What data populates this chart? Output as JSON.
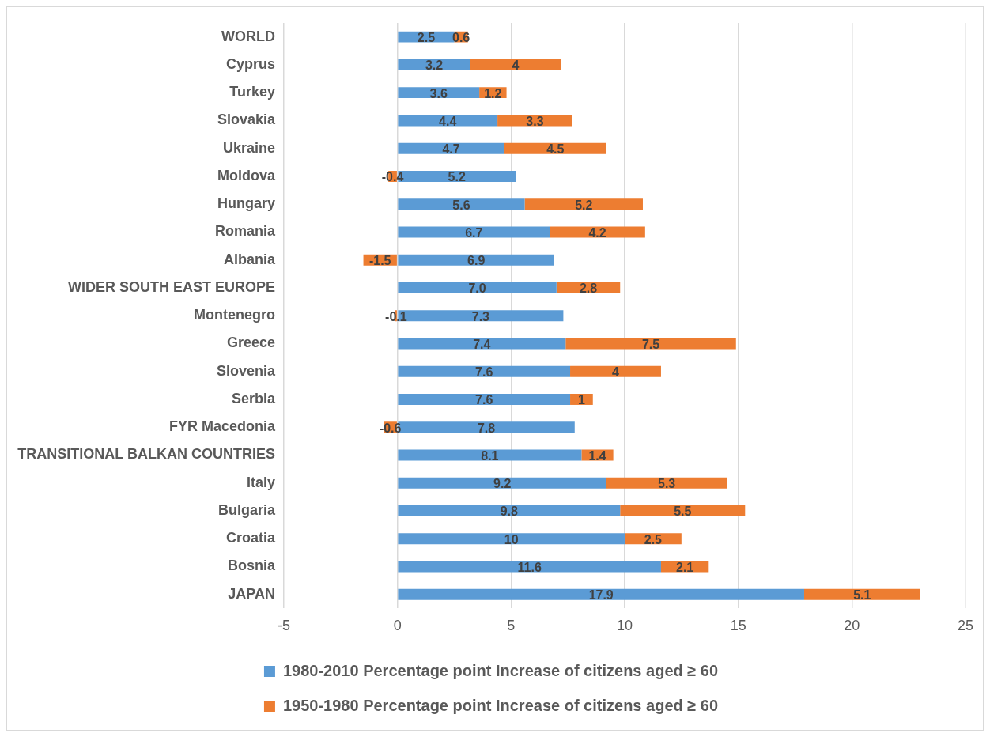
{
  "chart_data": {
    "type": "bar",
    "orientation": "horizontal",
    "stacked": true,
    "categories": [
      "WORLD",
      "Cyprus",
      "Turkey",
      "Slovakia",
      "Ukraine",
      "Moldova",
      "Hungary",
      "Romania",
      "Albania",
      "WIDER SOUTH EAST EUROPE",
      "Montenegro",
      "Greece",
      "Slovenia",
      "Serbia",
      "FYR Macedonia",
      "TRANSITIONAL BALKAN COUNTRIES",
      "Italy",
      "Bulgaria",
      "Croatia",
      "Bosnia",
      "JAPAN"
    ],
    "series": [
      {
        "name": "1980-2010 Percentage point Increase of citizens aged ≥ 60",
        "color": "#5b9bd5",
        "values": [
          2.5,
          3.2,
          3.6,
          4.4,
          4.7,
          5.2,
          5.6,
          6.7,
          6.9,
          7.0,
          7.3,
          7.4,
          7.6,
          7.6,
          7.8,
          8.1,
          9.2,
          9.8,
          10,
          11.6,
          17.9
        ],
        "value_labels": [
          "2.5",
          "3.2",
          "3.6",
          "4.4",
          "4.7",
          "5.2",
          "5.6",
          "6.7",
          "6.9",
          "7.0",
          "7.3",
          "7.4",
          "7.6",
          "7.6",
          "7.8",
          "8.1",
          "9.2",
          "9.8",
          "10",
          "11.6",
          "17.9"
        ]
      },
      {
        "name": "1950-1980 Percentage point Increase of citizens aged ≥ 60",
        "color": "#ed7d31",
        "values": [
          0.6,
          4,
          1.2,
          3.3,
          4.5,
          -0.4,
          5.2,
          4.2,
          -1.5,
          2.8,
          -0.1,
          7.5,
          4,
          1,
          -0.6,
          1.4,
          5.3,
          5.5,
          2.5,
          2.1,
          5.1
        ],
        "value_labels": [
          "0.6",
          "4",
          "1.2",
          "3.3",
          "4.5",
          "-0.4",
          "5.2",
          "4.2",
          "-1.5",
          "2.8",
          "-0.1",
          "7.5",
          "4",
          "1",
          "-0.6",
          "1.4",
          "5.3",
          "5.5",
          "2.5",
          "2.1",
          "5.1"
        ]
      }
    ],
    "xlim": [
      -5,
      25
    ],
    "xticks": [
      -5,
      0,
      5,
      10,
      15,
      20,
      25
    ],
    "grid": "x",
    "legend": "bottom"
  }
}
